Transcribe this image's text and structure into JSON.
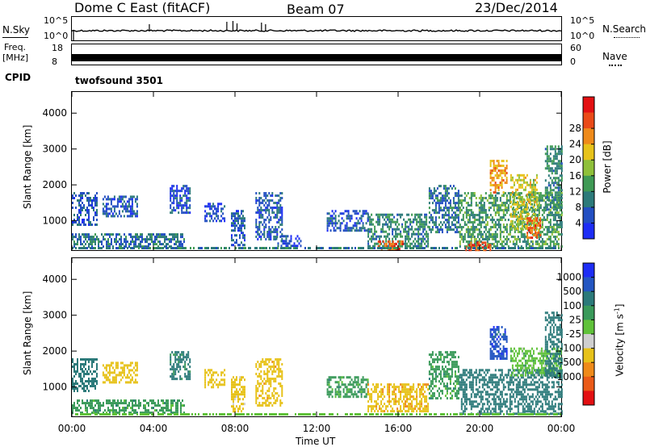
{
  "header": {
    "radar": "Dome C East (fitACF)",
    "beam": "Beam 07",
    "date": "23/Dec/2014"
  },
  "aux": {
    "nsky_label": "N.Sky",
    "nsearch_label": "N.Search",
    "nsky_ticks": [
      "10^5",
      "10^0"
    ],
    "nsearch_ticks": [
      "10^5",
      "10^0"
    ],
    "freq_label_1": "Freq.",
    "freq_label_2": "[MHz]",
    "freq_ticks": [
      "18",
      "8"
    ],
    "nave_label": "Nave",
    "nave_ticks": [
      "60",
      "0"
    ],
    "cpid_label": "CPID",
    "cpid_value": "twofsound 3501"
  },
  "chart_data": [
    {
      "type": "heatmap",
      "panel": "power",
      "ylabel": "Slant Range [km]",
      "xlabel": "",
      "x_ticks": [
        "00:00",
        "04:00",
        "08:00",
        "12:00",
        "16:00",
        "20:00",
        "00:00"
      ],
      "xlim_hours": [
        0,
        24
      ],
      "y_ticks": [
        1000,
        2000,
        3000,
        4000
      ],
      "ylim": [
        180,
        4590
      ],
      "colorbar": {
        "label": "Power [dB]",
        "ticks": [
          "4",
          "8",
          "12",
          "16",
          "20",
          "24",
          "28"
        ],
        "range": [
          0,
          32
        ],
        "colors": [
          "#1d2df5",
          "#234fc2",
          "#2c7a7a",
          "#3f9a55",
          "#8fc03a",
          "#e7c21a",
          "#ef8a1a",
          "#ea4a18",
          "#e31012"
        ]
      },
      "echo_regions": [
        {
          "t0": 0.0,
          "t1": 5.5,
          "r0": 300,
          "r1": 650,
          "level": 8
        },
        {
          "t0": 0.0,
          "t1": 1.2,
          "r0": 900,
          "r1": 1800,
          "level": 6
        },
        {
          "t0": 1.5,
          "t1": 3.2,
          "r0": 1100,
          "r1": 1700,
          "level": 6
        },
        {
          "t0": 4.8,
          "t1": 5.8,
          "r0": 1200,
          "r1": 2000,
          "level": 5
        },
        {
          "t0": 6.5,
          "t1": 7.5,
          "r0": 1000,
          "r1": 1500,
          "level": 5
        },
        {
          "t0": 7.8,
          "t1": 8.5,
          "r0": 300,
          "r1": 1300,
          "level": 6
        },
        {
          "t0": 9.0,
          "t1": 10.3,
          "r0": 500,
          "r1": 1800,
          "level": 6
        },
        {
          "t0": 10.0,
          "t1": 11.2,
          "r0": 300,
          "r1": 600,
          "level": 5
        },
        {
          "t0": 12.5,
          "t1": 14.5,
          "r0": 700,
          "r1": 1300,
          "level": 6
        },
        {
          "t0": 14.5,
          "t1": 17.5,
          "r0": 300,
          "r1": 1200,
          "level": 10
        },
        {
          "t0": 15.0,
          "t1": 16.2,
          "r0": 200,
          "r1": 450,
          "level": 26
        },
        {
          "t0": 17.5,
          "t1": 19.0,
          "r0": 700,
          "r1": 2000,
          "level": 8
        },
        {
          "t0": 19.0,
          "t1": 24.0,
          "r0": 300,
          "r1": 1800,
          "level": 12
        },
        {
          "t0": 19.3,
          "t1": 20.5,
          "r0": 200,
          "r1": 420,
          "level": 27
        },
        {
          "t0": 20.5,
          "t1": 21.3,
          "r0": 1800,
          "r1": 2700,
          "level": 22
        },
        {
          "t0": 21.5,
          "t1": 22.8,
          "r0": 800,
          "r1": 2300,
          "level": 18
        },
        {
          "t0": 22.3,
          "t1": 23.0,
          "r0": 500,
          "r1": 1100,
          "level": 25
        },
        {
          "t0": 23.2,
          "t1": 24.0,
          "r0": 1300,
          "r1": 3100,
          "level": 10
        }
      ]
    },
    {
      "type": "heatmap",
      "panel": "velocity",
      "ylabel": "Slant Range [km]",
      "xlabel": "Time UT",
      "x_ticks": [
        "00:00",
        "04:00",
        "08:00",
        "12:00",
        "16:00",
        "20:00",
        "00:00"
      ],
      "xlim_hours": [
        0,
        24
      ],
      "y_ticks": [
        1000,
        2000,
        3000,
        4000
      ],
      "ylim": [
        180,
        4590
      ],
      "colorbar": {
        "label": "Velocity [m s",
        "label_sup": "-1",
        "label_end": "]",
        "ticks": [
          "1000",
          "500",
          "100",
          "25",
          "-25",
          "-100",
          "-500",
          "-1000"
        ],
        "colors": [
          "#1d2df5",
          "#2456c2",
          "#2c7a7a",
          "#3a9a5a",
          "#60c23a",
          "#cfcfcf",
          "#e7c21a",
          "#ef8a1a",
          "#ea5a18",
          "#e31012"
        ]
      },
      "echo_regions": [
        {
          "t0": 0.0,
          "t1": 5.5,
          "r0": 250,
          "r1": 650,
          "vel": 60
        },
        {
          "t0": 0.0,
          "t1": 1.2,
          "r0": 900,
          "r1": 1800,
          "vel": 200
        },
        {
          "t0": 1.5,
          "t1": 3.2,
          "r0": 1100,
          "r1": 1700,
          "vel": -200
        },
        {
          "t0": 4.8,
          "t1": 5.8,
          "r0": 1200,
          "r1": 2000,
          "vel": 150
        },
        {
          "t0": 6.5,
          "t1": 7.5,
          "r0": 1000,
          "r1": 1500,
          "vel": -300
        },
        {
          "t0": 7.8,
          "t1": 8.5,
          "r0": 300,
          "r1": 1300,
          "vel": -150
        },
        {
          "t0": 9.0,
          "t1": 10.3,
          "r0": 500,
          "r1": 1800,
          "vel": -350
        },
        {
          "t0": 12.5,
          "t1": 14.5,
          "r0": 700,
          "r1": 1300,
          "vel": 60
        },
        {
          "t0": 14.5,
          "t1": 17.5,
          "r0": 300,
          "r1": 1100,
          "vel": -400
        },
        {
          "t0": 17.5,
          "t1": 19.0,
          "r0": 700,
          "r1": 2000,
          "vel": 60
        },
        {
          "t0": 19.0,
          "t1": 24.0,
          "r0": 250,
          "r1": 1500,
          "vel": 300
        },
        {
          "t0": 20.5,
          "t1": 21.3,
          "r0": 1800,
          "r1": 2700,
          "vel": 800
        },
        {
          "t0": 21.5,
          "t1": 24.0,
          "r0": 1300,
          "r1": 2100,
          "vel": 0
        },
        {
          "t0": 23.2,
          "t1": 24.0,
          "r0": 1300,
          "r1": 3100,
          "vel": 200
        }
      ]
    }
  ]
}
